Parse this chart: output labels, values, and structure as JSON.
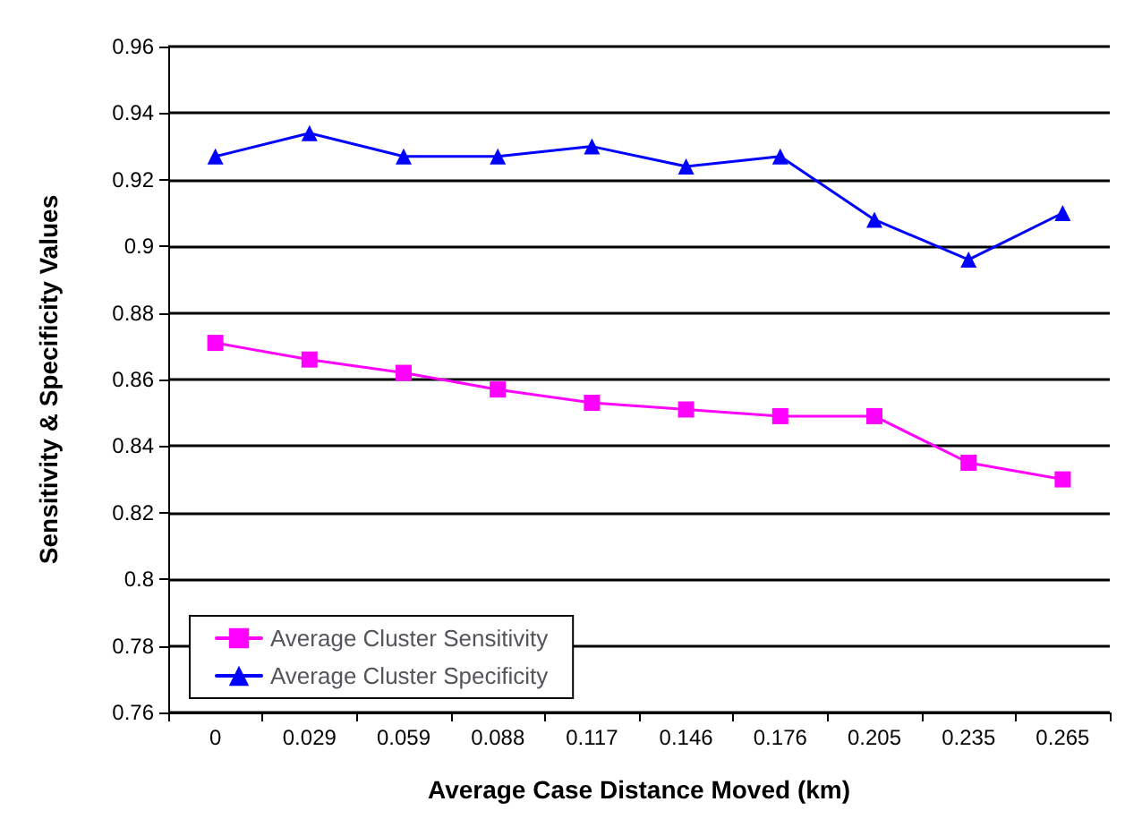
{
  "chart_data": {
    "type": "line",
    "xlabel": "Average Case Distance Moved (km)",
    "ylabel": "Sensitivity & Specificity Values",
    "categories": [
      "0",
      "0.029",
      "0.059",
      "0.088",
      "0.117",
      "0.146",
      "0.176",
      "0.205",
      "0.235",
      "0.265"
    ],
    "series": [
      {
        "name": "Average Cluster Sensitivity",
        "color": "#ff00ff",
        "marker": "square",
        "values": [
          0.871,
          0.866,
          0.862,
          0.857,
          0.853,
          0.851,
          0.849,
          0.849,
          0.835,
          0.83
        ]
      },
      {
        "name": "Average Cluster Specificity",
        "color": "#0000ff",
        "marker": "triangle",
        "values": [
          0.927,
          0.934,
          0.927,
          0.927,
          0.93,
          0.924,
          0.927,
          0.908,
          0.896,
          0.91
        ]
      }
    ],
    "ylim": [
      0.76,
      0.96
    ],
    "yticks": [
      0.76,
      0.78,
      0.8,
      0.82,
      0.84,
      0.86,
      0.88,
      0.9,
      0.92,
      0.94,
      0.96
    ],
    "grid": "y",
    "legend": "bottom left",
    "line_style": "solid"
  }
}
